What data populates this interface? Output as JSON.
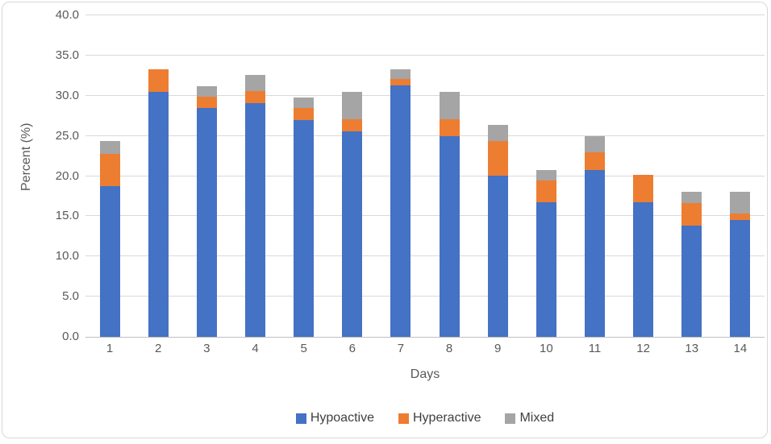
{
  "chart_data": {
    "type": "bar",
    "stacked": true,
    "title": "",
    "xlabel": "Days",
    "ylabel": "Percent (%)",
    "categories": [
      "1",
      "2",
      "3",
      "4",
      "5",
      "6",
      "7",
      "8",
      "9",
      "10",
      "11",
      "12",
      "13",
      "14"
    ],
    "series": [
      {
        "name": "Hypoactive",
        "color": "#4472C4",
        "values": [
          18.7,
          30.5,
          28.5,
          29.1,
          27.0,
          25.6,
          31.3,
          25.0,
          20.1,
          16.7,
          20.8,
          16.7,
          13.8,
          14.5
        ]
      },
      {
        "name": "Hyperactive",
        "color": "#ED7D31",
        "values": [
          4.1,
          2.8,
          1.4,
          1.5,
          1.5,
          1.5,
          0.8,
          2.1,
          4.3,
          2.8,
          2.2,
          3.5,
          2.8,
          0.8
        ]
      },
      {
        "name": "Mixed",
        "color": "#A5A5A5",
        "values": [
          1.6,
          0.0,
          1.3,
          2.0,
          1.3,
          3.4,
          1.2,
          3.4,
          2.0,
          1.3,
          2.0,
          0.0,
          1.4,
          2.7
        ]
      }
    ],
    "stack_totals": [
      24.4,
      33.3,
      31.2,
      32.6,
      29.8,
      30.5,
      33.3,
      30.5,
      26.4,
      20.8,
      25.0,
      20.2,
      18.0,
      18.0
    ],
    "ylim": [
      0,
      40
    ],
    "ytick_step": 5,
    "ytick_labels": [
      "0.0",
      "5.0",
      "10.0",
      "15.0",
      "20.0",
      "25.0",
      "30.0",
      "35.0",
      "40.0"
    ],
    "grid": true,
    "legend_position": "bottom"
  },
  "colors": {
    "gridline": "#D9D9D9",
    "axis_line": "#BFBFBF",
    "tick_text": "#595959",
    "legend_text": "#404040",
    "frame_border": "#D7D7D7",
    "background": "#FFFFFF"
  }
}
